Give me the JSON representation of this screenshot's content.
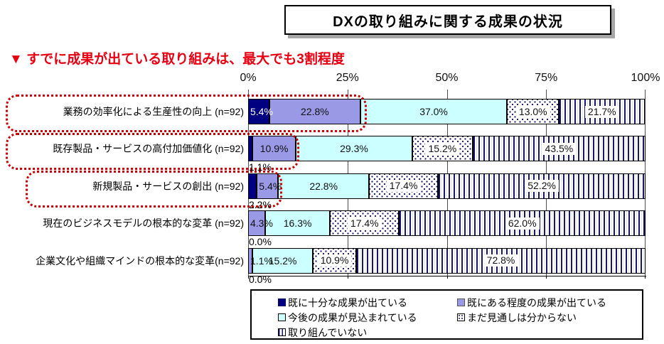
{
  "title": "DXの取り組みに関する成果の状況",
  "subtitle": "▼ すでに成果が出ている取り組みは、最大でも3割程度",
  "chart_data": {
    "type": "bar",
    "stacked": true,
    "orientation": "horizontal",
    "title": "DXの取り組みに関する成果の状況",
    "annotation": "すでに成果が出ている取り組みは、最大でも3割程度",
    "x_axis": {
      "ticks": [
        "0%",
        "25%",
        "50%",
        "75%",
        "100%"
      ],
      "range": [
        0,
        100
      ],
      "grid": true
    },
    "categories": [
      "業務の効率化による生産性の向上 (n=92)",
      "既存製品・サービスの高付加価値化 (n=92)",
      "新規製品・サービスの創出 (n=92)",
      "現在のビジネスモデルの根本的な変革 (n=92)",
      "企業文化や組織マインドの根本的な変革(n=92)"
    ],
    "series": [
      {
        "name": "既に十分な成果が出ている",
        "style": "solid",
        "color": "#000080",
        "values": [
          5.4,
          1.1,
          2.2,
          0.0,
          0.0
        ]
      },
      {
        "name": "既にある程度の成果が出ている",
        "style": "solid",
        "color": "#9999E6",
        "values": [
          22.8,
          10.9,
          5.4,
          4.3,
          1.1
        ]
      },
      {
        "name": "今後の成果が見込まれている",
        "style": "solid",
        "color": "#CCFFFF",
        "values": [
          37.0,
          29.3,
          22.8,
          16.3,
          15.2
        ]
      },
      {
        "name": "まだ見通しは分からない",
        "style": "dots",
        "color": "#16166B",
        "values": [
          13.0,
          15.2,
          17.4,
          17.4,
          10.9
        ]
      },
      {
        "name": "取り組んでいない",
        "style": "stripes",
        "color": "#16166B",
        "values": [
          21.7,
          43.5,
          52.2,
          62.0,
          72.8
        ]
      }
    ],
    "label_modes": [
      [
        "inw",
        "in",
        "in",
        "chip",
        "chip"
      ],
      [
        "below",
        "in",
        "in",
        "chip",
        "chip"
      ],
      [
        "below",
        "ovl",
        "in",
        "chip",
        "chip"
      ],
      [
        "below",
        "ovl",
        "in",
        "chip",
        "chip"
      ],
      [
        "below",
        "ovl",
        "in",
        "chip",
        "chip"
      ]
    ],
    "legend_position": "bottom",
    "highlighted_rows": [
      0,
      1,
      2
    ],
    "highlight_color": "#CC0000"
  }
}
